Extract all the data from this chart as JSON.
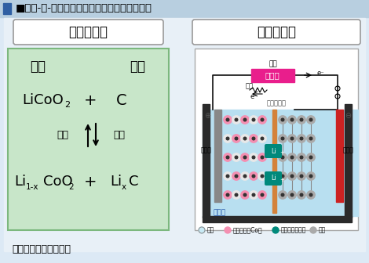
{
  "title": "■第１-２-１図／リチウムイオン電池の仕組み",
  "title_bg": "#b8cfe0",
  "main_bg": "#dce9f5",
  "reaction_box_bg": "#c8e6c9",
  "reaction_box_border": "#7cb87e",
  "label_battery": "電池反応式",
  "label_principle": "作動原理図",
  "pos_electrode": "正極",
  "neg_electrode": "負極",
  "charge_label": "充電",
  "discharge_label": "放電",
  "credit": "提供：旭化成株式会社",
  "charger_label": "充電器",
  "charger_charge": "充電",
  "charger_discharge": "放電",
  "separator": "セパレータ",
  "left_collector": "集電体",
  "right_collector": "集電体",
  "electrolyte": "電解液",
  "legend_oxygen": "酸素",
  "legend_metal": "金属原子（Co）",
  "legend_lithium": "リチウムイオン",
  "legend_carbon": "炭素",
  "title_color": "#1a1a1a",
  "blue_square": "#2e5fa3",
  "charger_bg": "#e91e8c",
  "left_wall_color": "#2a2a2a",
  "right_wall_color": "#2a2a2a",
  "left_electrode_color": "#888888",
  "right_electrode_color": "#cc2222",
  "separator_color": "#d4823a",
  "liquid_color": "#b8dff0",
  "lithium_ion_color": "#00897b",
  "circuit_color": "#111111"
}
